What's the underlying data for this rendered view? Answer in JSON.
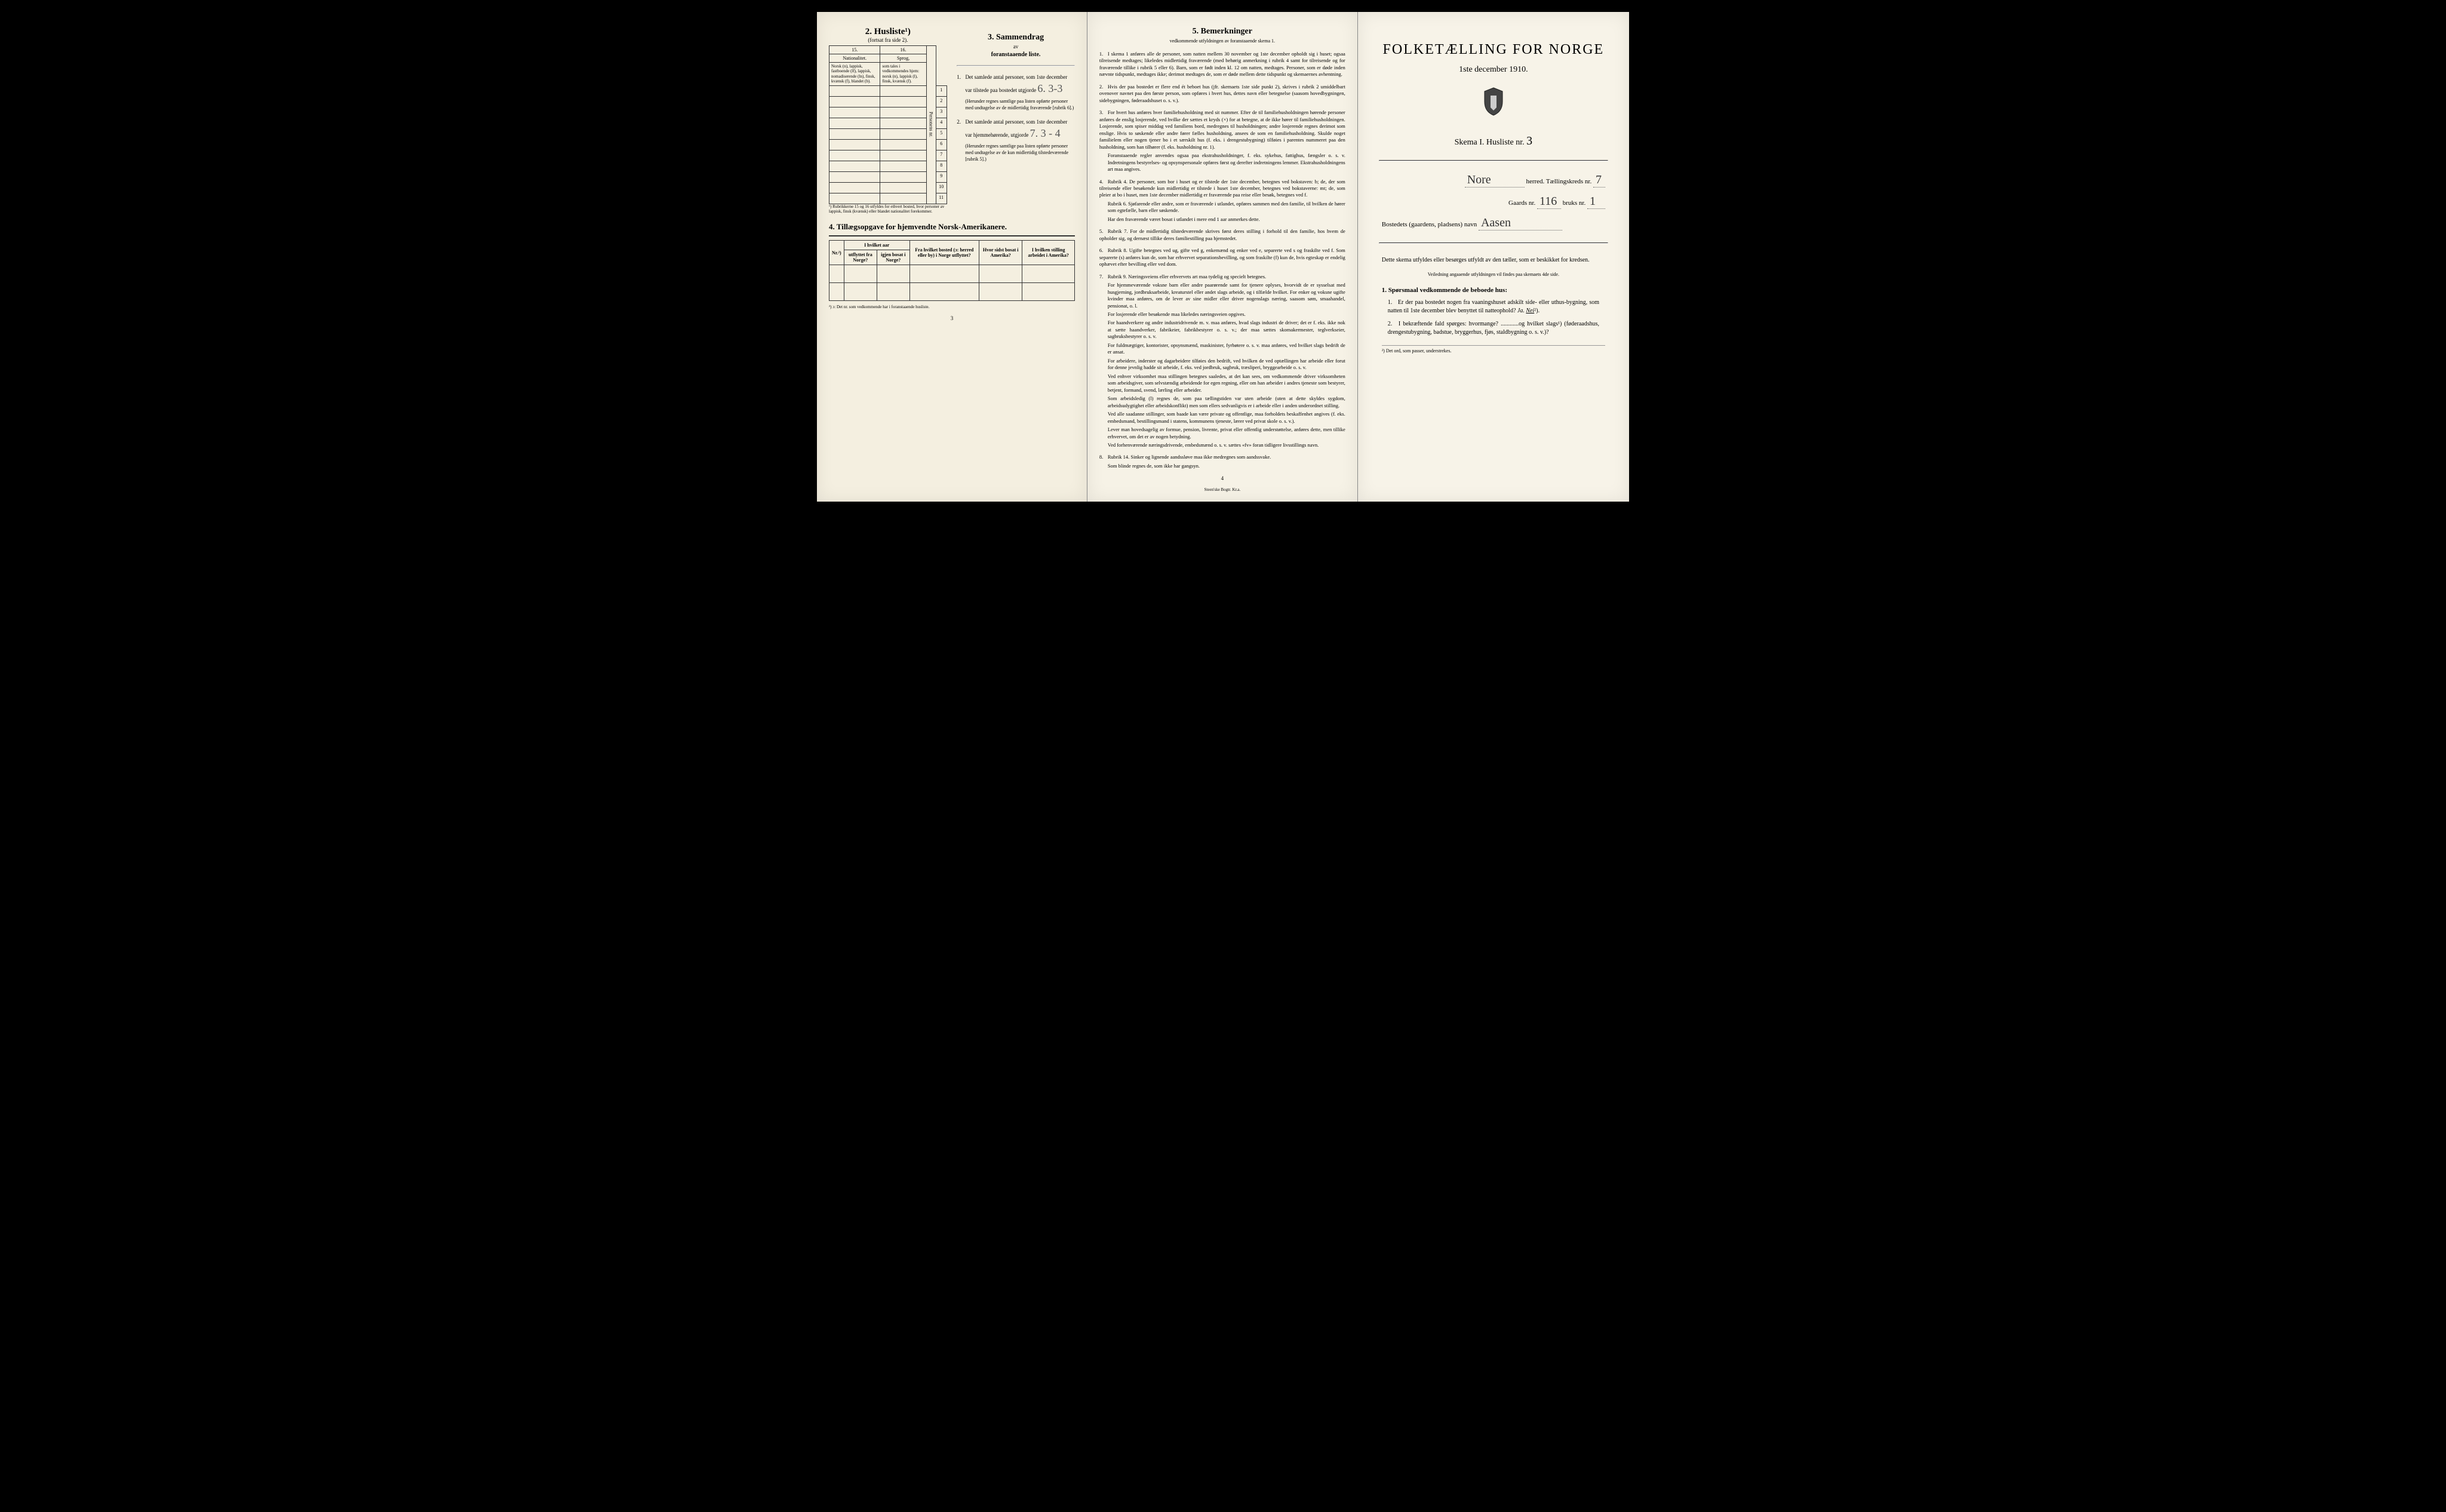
{
  "page1": {
    "husliste_title": "2. Husliste¹)",
    "husliste_sub": "(fortsat fra side 2).",
    "col15": "15.",
    "col16": "16.",
    "col15_label": "Nationalitet.",
    "col16_label": "Sprog,",
    "col15_desc": "Norsk (n), lappisk, fastboende (lf), lappisk, nomadiserende (ln), finsk, kvænsk (f), blandet (b).",
    "col16_desc": "som tales i vedkommendes hjem: norsk (n), lappisk (l), finsk, kvænsk (f).",
    "vert_label": "Personens nr.",
    "rows": [
      "1",
      "2",
      "3",
      "4",
      "5",
      "6",
      "7",
      "8",
      "9",
      "10",
      "11"
    ],
    "footnote_rubrik": "¹) Rubrikkerne 15 og 16 utfyldes for ethvert bosted, hvor personer av lappisk, finsk (kvænsk) eller blandet nationalitet forekommer.",
    "section3_title": "3. Sammendrag",
    "section3_av": "av",
    "section3_sub": "foranstaaende liste.",
    "s3_item1_label": "1.",
    "s3_item1_text": "Det samlede antal personer, som 1ste december",
    "s3_item1_line": "var tilstede paa bostedet utgjorde",
    "s3_item1_val": "6.  3-3",
    "s3_item1_paren": "(Herunder regnes samtlige paa listen opførte personer med undtagelse av de midlertidig fraværende [rubrik 6].)",
    "s3_item2_label": "2.",
    "s3_item2_text": "Det samlede antal personer, som 1ste december",
    "s3_item2_line": "var hjemmehørende, utgjorde",
    "s3_item2_val": "7.  3 - 4",
    "s3_item2_paren": "(Herunder regnes samtlige paa listen opførte personer med undtagelse av de kun midlertidig tilstedeværende [rubrik 5].)",
    "section4_title": "4. Tillægsopgave for hjemvendte Norsk-Amerikanere.",
    "s4_h1": "Nr.²)",
    "s4_h2a": "I hvilket aar",
    "s4_h2b_1": "utflyttet fra Norge?",
    "s4_h2b_2": "igjen bosat i Norge?",
    "s4_h3": "Fra hvilket bosted (ɔ: herred eller by) i Norge utflyttet?",
    "s4_h4": "Hvor sidst bosat i Amerika?",
    "s4_h5": "I hvilken stilling arbeidet i Amerika?",
    "footnote4": "²) ɔ: Det nr. som vedkommende har i foranstaaende husliste.",
    "page_num": "3"
  },
  "page2": {
    "title": "5. Bemerkninger",
    "sub": "vedkommende utfyldningen av foranstaaende skema 1.",
    "items": [
      {
        "n": "1.",
        "text": "I skema 1 anføres alle de personer, som natten mellem 30 november og 1ste december opholdt sig i huset; ogsaa tilreisende medtages; likeledes midlertidig fraværende (med behørig anmerkning i rubrik 4 samt for tilreisende og for fraværende tillike i rubrik 5 eller 6). Barn, som er født inden kl. 12 om natten, medtages. Personer, som er døde inden nævnte tidspunkt, medtages ikke; derimot medtages de, som er døde mellem dette tidspunkt og skemaernes avhentning."
      },
      {
        "n": "2.",
        "text": "Hvis der paa bostedet er flere end ét beboet hus (jfr. skemaets 1ste side punkt 2), skrives i rubrik 2 umiddelbart ovenover navnet paa den første person, som opføres i hvert hus, dettes navn eller betegnelse (saasom hovedbygningen, sidebygningen, føderaadshuset o. s. v.)."
      },
      {
        "n": "3.",
        "text": "For hvert hus anføres hver familiehusholdning med sit nummer. Efter de til familiehusholdningen hørende personer anføres de enslig losjerende, ved hvilke der sættes et kryds (×) for at betegne, at de ikke hører til familiehusholdningen. Losjerende, som spiser middag ved familiens bord, medregnes til husholdningen; andre losjerende regnes derimot som enslige. Hvis to søskende eller andre fører fælles husholdning, ansees de som en familiehusholdning. Skulde noget familielem eller nogen tjener bo i et særskilt hus (f. eks. i drengestubygning) tilføies i parentes nummeret paa den husholdning, som han tilhører (f. eks. husholdning nr. 1).",
        "extra": "Foranstaaende regler anvendes ogsaa paa ekstrahusholdninger, f. eks. sykehus, fattighus, fængsler o. s. v. Indretningens bestyrelses- og opsynspersonale opføres først og derefter indretningens lemmer. Ekstrahusholdningens art maa angives."
      },
      {
        "n": "4.",
        "text": "Rubrik 4. De personer, som bor i huset og er tilstede der 1ste december, betegnes ved bokstaven: b; de, der som tilreisende eller besøkende kun midlertidig er tilstede i huset 1ste december, betegnes ved bokstaverne: mt; de, som pleier at bo i huset, men 1ste december midlertidig er fraværende paa reise eller besøk, betegnes ved f.",
        "extra": "Rubrik 6. Sjøfarende eller andre, som er fraværende i utlandet, opføres sammen med den familie, til hvilken de hører som egtefælle, barn eller søskende.",
        "extra2": "Har den fraværende været bosat i utlandet i mere end 1 aar anmerkes dette."
      },
      {
        "n": "5.",
        "text": "Rubrik 7. For de midlertidig tilstedeværende skrives først deres stilling i forhold til den familie, hos hvem de opholder sig, og dernæst tillike deres familiestilling paa hjemstedet."
      },
      {
        "n": "6.",
        "text": "Rubrik 8. Ugifte betegnes ved ug, gifte ved g, enkemænd og enker ved e, separerte ved s og fraskilte ved f. Som separerte (s) anføres kun de, som har erhvervet separationsbevilling, og som fraskilte (f) kun de, hvis egteskap er endelig ophævet efter bevilling eller ved dom."
      },
      {
        "n": "7.",
        "text": "Rubrik 9. Næringsveiens eller erhvervets art maa tydelig og specielt betegnes.",
        "extra": "For hjemmeværende voksne barn eller andre paarørende samt for tjenere oplyses, hvorvidt de er sysselsat med husgjerning, jordbruksarbeide, kreaturstel eller andet slags arbeide, og i tilfælde hvilket. For enker og voksne ugifte kvinder maa anføres, om de lever av sine midler eller driver nogenslags næring, saasom søm, smaahandel, pensionat, o. l.",
        "extra2": "For losjerende eller besøkende maa likeledes næringsveien opgives.",
        "extra3": "For haandverkere og andre industridrivende m. v. maa anføres, hvad slags industri de driver; det er f. eks. ikke nok at sætte haandverker, fabrikeier, fabrikbestyrer o. s. v.; der maa sættes skomakermester, teglverkseier, sagbruksbestyrer o. s. v.",
        "extra4": "For fuldmægtiger, kontorister, opsynsmænd, maskinister, fyrbøtere o. s. v. maa anføres, ved hvilket slags bedrift de er ansat.",
        "extra5": "For arbeidere, inderster og dagarbeidere tilføies den bedrift, ved hvilken de ved optællingen har arbeide eller forut for denne jevnlig hadde sit arbeide, f. eks. ved jordbruk, sagbruk, træsliperi, bryggearbeide o. s. v.",
        "extra6": "Ved enhver virksomhet maa stillingen betegnes saaledes, at det kan sees, om vedkommende driver virksomheten som arbeidsgiver, som selvstændig arbeidende for egen regning, eller om han arbeider i andres tjeneste som bestyrer, betjent, formand, svend, lærling eller arbeider.",
        "extra7": "Som arbeidsledig (l) regnes de, som paa tællingstiden var uten arbeide (uten at dette skyldes sygdom, arbeidsudygtighet eller arbeidskonflikt) men som ellers sedvanligvis er i arbeide eller i anden underordnet stilling.",
        "extra8": "Ved alle saadanne stillinger, som baade kan være private og offentlige, maa forholdets beskaffenhet angives (f. eks. embedsmand, bestillingsmand i statens, kommunens tjeneste, lærer ved privat skole o. s. v.).",
        "extra9": "Lever man hovedsagelig av formue, pension, livrente, privat eller offentlig understøttelse, anføres dette, men tillike erhvervet, om det er av nogen betydning.",
        "extra10": "Ved forhenværende næringsdrivende, embedsmænd o. s. v. sættes «fv» foran tidligere livsstillings navn."
      },
      {
        "n": "8.",
        "text": "Rubrik 14. Sinker og lignende aandssløve maa ikke medregnes som aandssvake.",
        "extra": "Som blinde regnes de, som ikke har gangsyn."
      }
    ],
    "page_num": "4",
    "imprint": "Steen'ske Bogtr. Kr.a."
  },
  "page3": {
    "title": "FOLKETÆLLING FOR NORGE",
    "date": "1ste december 1910.",
    "skema": "Skema I.  Husliste nr.",
    "skema_val": "3",
    "herred_label": "herred.  Tællingskreds nr.",
    "herred_val": "Nore",
    "kreds_val": "7",
    "gaards_label": "Gaards nr.",
    "gaards_val": "116",
    "bruks_label": "bruks nr.",
    "bruks_val": "1",
    "bosted_label": "Bostedets (gaardens, pladsens) navn",
    "bosted_val": "Aasen",
    "para1": "Dette skema utfyldes eller besørges utfyldt av den tæller, som er beskikket for kredsen.",
    "para_small": "Veiledning angaaende utfyldningen vil findes paa skemaets 4de side.",
    "q_title": "1. Spørsmaal vedkommende de beboede hus:",
    "q1_n": "1.",
    "q1_text": "Er der paa bostedet nogen fra vaaningshuset adskilt side- eller uthus-bygning, som natten til 1ste december blev benyttet til natteophold?",
    "q1_ja": "Ja.",
    "q1_nei": "Nei",
    "q1_sup": "²).",
    "q2_n": "2.",
    "q2_text": "I bekræftende fald spørges: hvormange? ............og hvilket slags¹) (føderaadshus, drengestubygning, badstue, bryggerhus, fjøs, staldbygning o. s. v.)?",
    "foot": "²) Det ord, som passer, understrekes."
  },
  "colors": {
    "paper": "#f4efe0",
    "ink": "#222222",
    "handwriting": "#555555"
  }
}
